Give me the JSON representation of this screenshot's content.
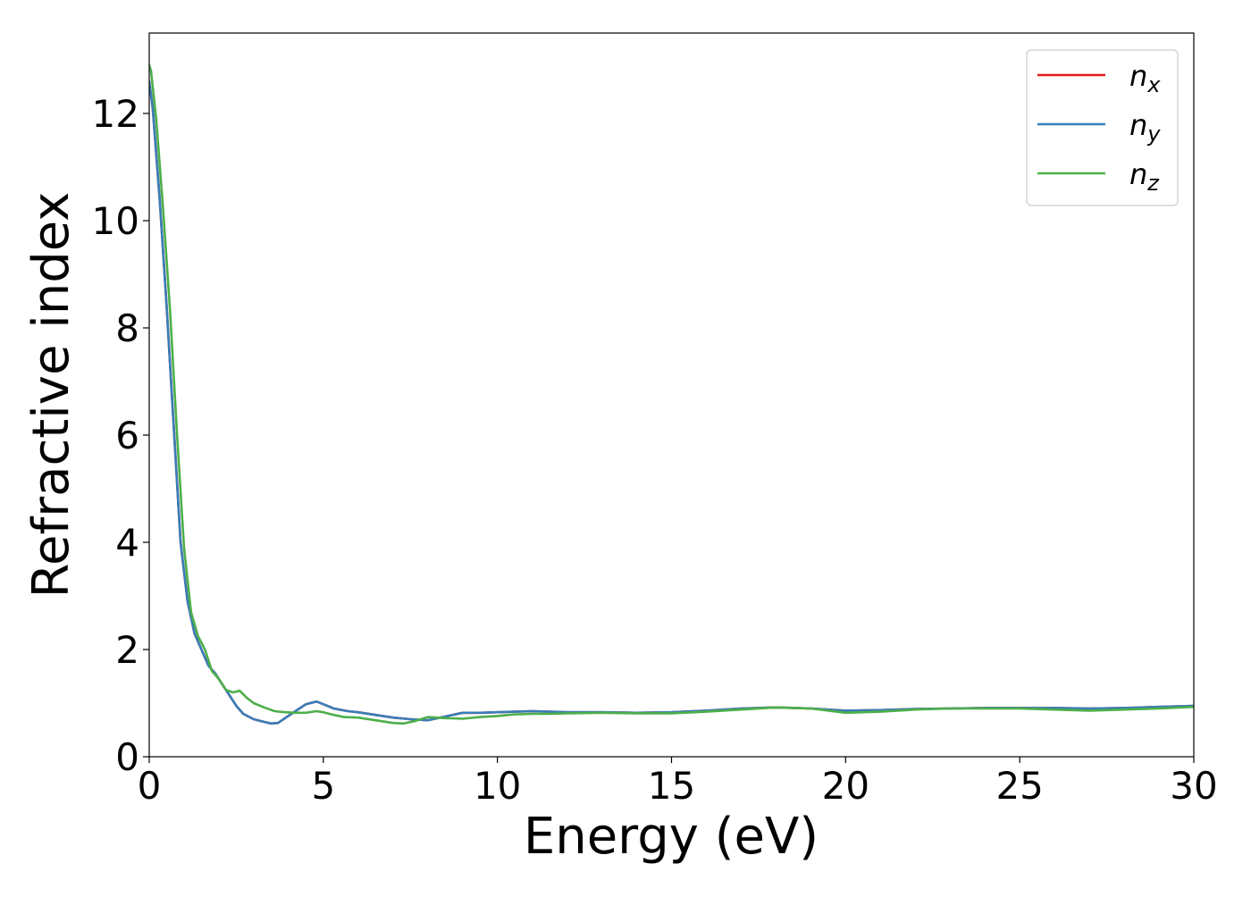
{
  "chart_data": {
    "type": "line",
    "title": "",
    "xlabel": "Energy (eV)",
    "ylabel": "Refractive index",
    "xlim": [
      0,
      30
    ],
    "ylim": [
      0,
      13.5
    ],
    "xticks": [
      0,
      5,
      10,
      15,
      20,
      25,
      30
    ],
    "yticks": [
      0,
      2,
      4,
      6,
      8,
      10,
      12
    ],
    "grid": false,
    "legend_position": "top-right",
    "series": [
      {
        "name": "n",
        "subscript": "x",
        "color": "#e41a1c",
        "x": [
          0.0,
          0.1,
          0.3,
          0.5,
          0.7,
          0.9,
          1.1,
          1.3,
          1.5,
          1.7,
          1.9,
          2.1,
          2.3,
          2.5,
          2.7,
          3.0,
          3.3,
          3.5,
          3.7,
          3.9,
          4.2,
          4.5,
          4.8,
          5.0,
          5.3,
          5.7,
          6.0,
          6.5,
          7.0,
          7.5,
          8.0,
          8.5,
          9.0,
          9.5,
          10.0,
          10.5,
          11.0,
          11.5,
          12.0,
          13.0,
          14.0,
          15.0,
          16.0,
          17.0,
          18.0,
          19.0,
          20.0,
          21.0,
          22.0,
          23.0,
          24.0,
          25.0,
          26.0,
          27.0,
          28.0,
          29.0,
          30.0
        ],
        "y": [
          12.6,
          12.1,
          10.4,
          8.4,
          6.2,
          4.0,
          2.9,
          2.3,
          2.0,
          1.7,
          1.55,
          1.35,
          1.15,
          0.95,
          0.8,
          0.7,
          0.65,
          0.62,
          0.63,
          0.72,
          0.85,
          0.98,
          1.03,
          0.98,
          0.9,
          0.85,
          0.83,
          0.78,
          0.73,
          0.7,
          0.68,
          0.75,
          0.82,
          0.82,
          0.83,
          0.84,
          0.85,
          0.84,
          0.83,
          0.83,
          0.82,
          0.83,
          0.86,
          0.9,
          0.92,
          0.9,
          0.86,
          0.87,
          0.89,
          0.9,
          0.91,
          0.91,
          0.91,
          0.9,
          0.91,
          0.93,
          0.95
        ]
      },
      {
        "name": "n",
        "subscript": "y",
        "color": "#377eb8",
        "x": [
          0.0,
          0.1,
          0.3,
          0.5,
          0.7,
          0.9,
          1.1,
          1.3,
          1.5,
          1.7,
          1.9,
          2.1,
          2.3,
          2.5,
          2.7,
          3.0,
          3.3,
          3.5,
          3.7,
          3.9,
          4.2,
          4.5,
          4.8,
          5.0,
          5.3,
          5.7,
          6.0,
          6.5,
          7.0,
          7.5,
          8.0,
          8.5,
          9.0,
          9.5,
          10.0,
          10.5,
          11.0,
          11.5,
          12.0,
          13.0,
          14.0,
          15.0,
          16.0,
          17.0,
          18.0,
          19.0,
          20.0,
          21.0,
          22.0,
          23.0,
          24.0,
          25.0,
          26.0,
          27.0,
          28.0,
          29.0,
          30.0
        ],
        "y": [
          12.6,
          12.1,
          10.4,
          8.4,
          6.2,
          4.0,
          2.9,
          2.3,
          2.0,
          1.7,
          1.55,
          1.35,
          1.15,
          0.95,
          0.8,
          0.7,
          0.65,
          0.62,
          0.63,
          0.72,
          0.85,
          0.98,
          1.03,
          0.98,
          0.9,
          0.85,
          0.83,
          0.78,
          0.73,
          0.7,
          0.68,
          0.75,
          0.82,
          0.82,
          0.83,
          0.84,
          0.85,
          0.84,
          0.83,
          0.83,
          0.82,
          0.83,
          0.86,
          0.9,
          0.92,
          0.9,
          0.86,
          0.87,
          0.89,
          0.9,
          0.91,
          0.91,
          0.91,
          0.9,
          0.91,
          0.93,
          0.95
        ]
      },
      {
        "name": "n",
        "subscript": "z",
        "color": "#4daf4a",
        "x": [
          0.0,
          0.05,
          0.2,
          0.4,
          0.6,
          0.8,
          1.0,
          1.2,
          1.4,
          1.6,
          1.8,
          2.0,
          2.2,
          2.4,
          2.6,
          2.8,
          3.0,
          3.3,
          3.6,
          3.9,
          4.2,
          4.5,
          4.8,
          5.0,
          5.3,
          5.6,
          6.0,
          6.5,
          7.0,
          7.3,
          7.6,
          8.0,
          8.5,
          9.0,
          9.5,
          10.0,
          10.5,
          11.0,
          11.5,
          12.0,
          13.0,
          14.0,
          15.0,
          16.0,
          17.0,
          18.0,
          19.0,
          20.0,
          21.0,
          22.0,
          23.0,
          24.0,
          25.0,
          26.0,
          27.0,
          28.0,
          29.0,
          30.0
        ],
        "y": [
          12.9,
          12.8,
          11.9,
          10.2,
          8.3,
          6.0,
          3.9,
          2.7,
          2.25,
          2.0,
          1.6,
          1.45,
          1.25,
          1.2,
          1.23,
          1.1,
          1.0,
          0.92,
          0.85,
          0.83,
          0.82,
          0.82,
          0.85,
          0.83,
          0.78,
          0.74,
          0.73,
          0.68,
          0.63,
          0.62,
          0.66,
          0.74,
          0.72,
          0.71,
          0.74,
          0.76,
          0.79,
          0.8,
          0.8,
          0.81,
          0.82,
          0.81,
          0.81,
          0.84,
          0.88,
          0.92,
          0.9,
          0.82,
          0.84,
          0.88,
          0.9,
          0.9,
          0.9,
          0.88,
          0.86,
          0.88,
          0.9,
          0.93
        ]
      }
    ]
  }
}
